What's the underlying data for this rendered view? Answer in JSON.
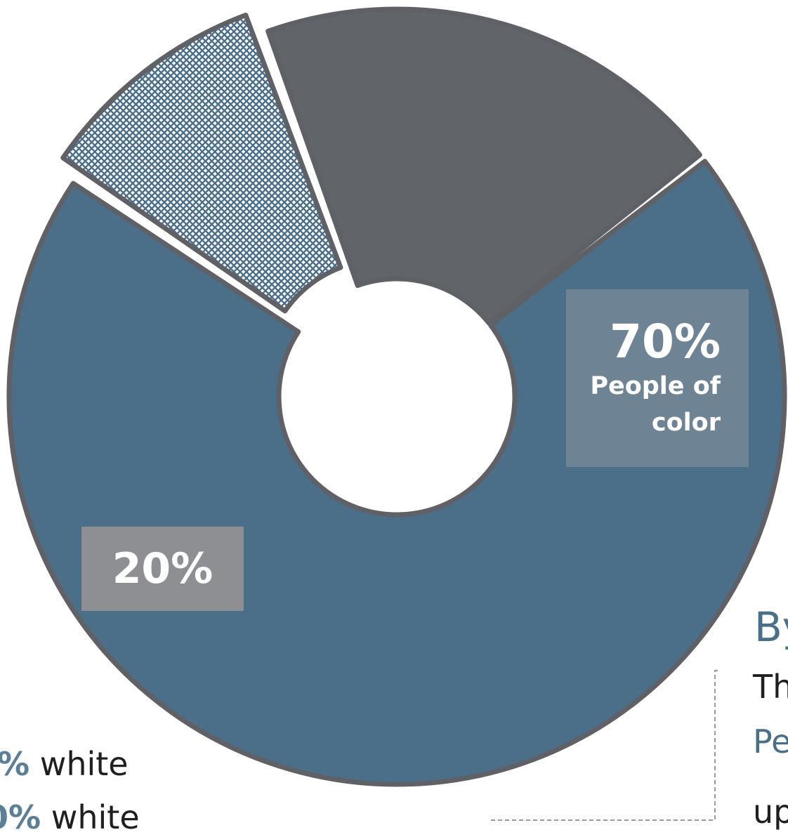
{
  "chart_data": {
    "type": "pie",
    "donut": true,
    "slices": [
      {
        "value": 70,
        "color": "#4b6f88",
        "label": "70%",
        "sublabel": "People of color"
      },
      {
        "value": 10,
        "color": "#4b6f88",
        "pattern": "crosshatch",
        "exploded": true
      },
      {
        "value": 20,
        "color": "#616469",
        "label": "20%"
      }
    ]
  },
  "colors": {
    "stroke": "#5f6166",
    "primary_slice": "#4b6f88",
    "secondary_slice": "#616469",
    "label_box_primary": "#6e8393",
    "label_box_secondary": "#8d8f93",
    "accent_text": "#4a6f88",
    "dashed_line": "#9a9a9a"
  },
  "left_text": {
    "line1_bold": "%",
    "line1_rest": " white",
    "line2_bold": "0%",
    "line2_rest": " white"
  },
  "right_text": {
    "heading": "By",
    "line1": "Th",
    "line2": "Pe",
    "line3": "up"
  }
}
